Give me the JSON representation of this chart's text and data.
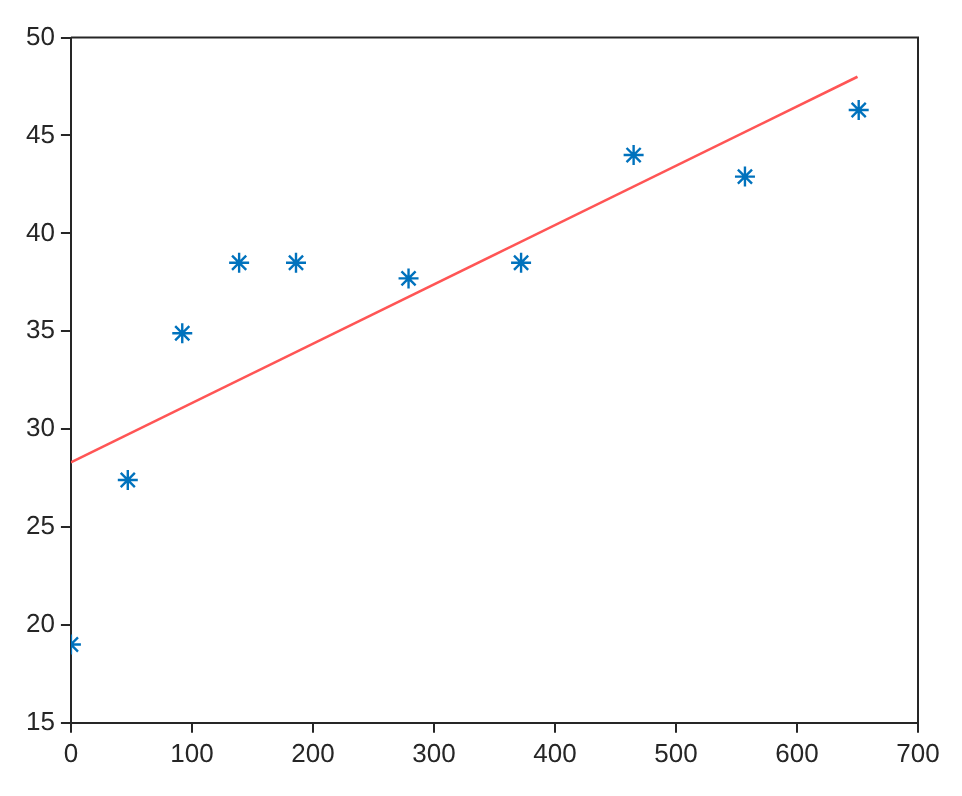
{
  "chart_data": {
    "type": "scatter",
    "marker": "cross",
    "grid": false,
    "legend": false,
    "xlim": [
      0,
      700
    ],
    "xticks": [
      0,
      100,
      200,
      300,
      400,
      500,
      600,
      700
    ],
    "ylim": [
      15,
      50
    ],
    "yticks": [
      15,
      20,
      25,
      30,
      35,
      40,
      45,
      50
    ],
    "series": [
      {
        "color": "#0072bd",
        "x": [
          0,
          47,
          92,
          139,
          186,
          279,
          372,
          465,
          557,
          651
        ],
        "values": [
          19.0,
          27.4,
          34.9,
          38.5,
          38.5,
          37.7,
          38.5,
          44.0,
          42.9,
          46.3
        ]
      },
      {
        "type": "line",
        "color": "#ff5555",
        "marker": "none",
        "x": [
          0,
          650
        ],
        "values": [
          28.3,
          48.0
        ]
      }
    ]
  }
}
